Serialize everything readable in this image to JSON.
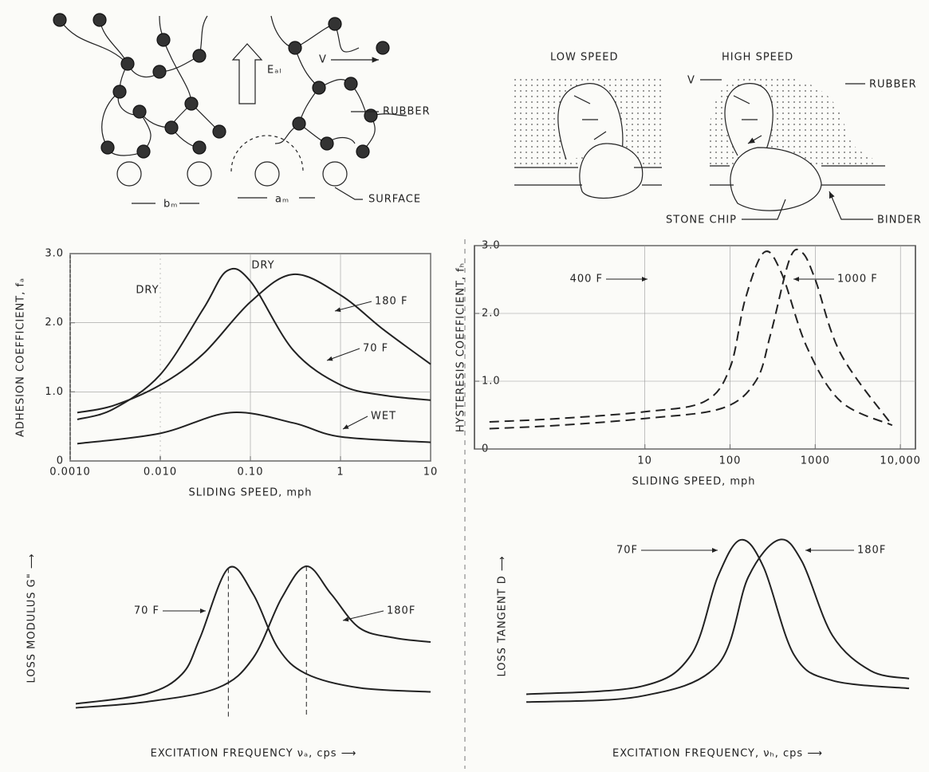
{
  "diagrams": {
    "molecular": {
      "labels": [
        "Eₐₗ",
        "V",
        "RUBBER",
        "bₘ",
        "aₘ",
        "SURFACE"
      ]
    },
    "stone": {
      "labels": [
        "LOW SPEED",
        "HIGH SPEED",
        "V",
        "RUBBER",
        "STONE CHIP",
        "BINDER"
      ]
    }
  },
  "chart_data": [
    {
      "type": "line",
      "x_label": "SLIDING SPEED, mph",
      "y_label": "ADHESION COEFFICIENT, fₐ",
      "xscale": "log",
      "xlim": [
        0.001,
        10
      ],
      "ylim": [
        0,
        3
      ],
      "xticks": [
        {
          "value": 0.001,
          "label": "0.0010"
        },
        {
          "value": 0.01,
          "label": "0.010"
        },
        {
          "value": 0.1,
          "label": "0.10"
        },
        1,
        10
      ],
      "yticks": [
        0,
        {
          "value": 1,
          "label": "1.0"
        },
        {
          "value": 2,
          "label": "2.0"
        },
        {
          "value": 3,
          "label": "3.0"
        }
      ],
      "grid": true,
      "frame": true,
      "annotations": [
        "DRY",
        "DRY"
      ],
      "series": [
        {
          "name": "70 F",
          "color": "#222",
          "x": [
            0.0012,
            0.003,
            0.01,
            0.03,
            0.055,
            0.1,
            0.3,
            1,
            3,
            10
          ],
          "values": [
            0.6,
            0.75,
            1.25,
            2.2,
            2.75,
            2.6,
            1.6,
            1.1,
            0.95,
            0.88
          ]
        },
        {
          "name": "180 F",
          "color": "#222",
          "x": [
            0.0012,
            0.003,
            0.01,
            0.03,
            0.1,
            0.3,
            1,
            3,
            10
          ],
          "values": [
            0.7,
            0.8,
            1.1,
            1.55,
            2.3,
            2.7,
            2.4,
            1.9,
            1.4
          ]
        },
        {
          "name": "WET",
          "color": "#222",
          "x": [
            0.0012,
            0.01,
            0.06,
            0.3,
            1,
            10
          ],
          "values": [
            0.25,
            0.4,
            0.7,
            0.55,
            0.35,
            0.27
          ]
        }
      ]
    },
    {
      "type": "line",
      "x_label": "SLIDING SPEED, mph",
      "y_label": "HYSTERESIS COEFFICIENT, fₕ",
      "xscale": "log",
      "xlim": [
        0.1,
        15000
      ],
      "ylim": [
        0,
        3
      ],
      "xticks": [
        10,
        100,
        1000,
        {
          "value": 10000,
          "label": "10,000"
        }
      ],
      "yticks": [
        0,
        {
          "value": 1,
          "label": "1.0"
        },
        {
          "value": 2,
          "label": "2.0"
        },
        {
          "value": 3,
          "label": "3.0"
        }
      ],
      "grid": true,
      "frame": true,
      "annotations": [],
      "series": [
        {
          "name": "400 F",
          "color": "#222",
          "dash": true,
          "x": [
            0.15,
            1,
            10,
            50,
            100,
            150,
            250,
            400,
            800,
            2000,
            8000
          ],
          "values": [
            0.4,
            0.45,
            0.55,
            0.7,
            1.2,
            2.2,
            2.9,
            2.6,
            1.5,
            0.7,
            0.35
          ]
        },
        {
          "name": "1000 F",
          "color": "#222",
          "dash": true,
          "x": [
            0.15,
            1,
            10,
            80,
            200,
            300,
            500,
            700,
            1000,
            2000,
            8000
          ],
          "values": [
            0.3,
            0.35,
            0.45,
            0.6,
            1.0,
            1.7,
            2.8,
            2.9,
            2.5,
            1.4,
            0.35
          ]
        }
      ]
    },
    {
      "type": "line",
      "x_label": "EXCITATION FREQUENCY νₐ, cps ⟶",
      "y_label": "LOSS MODULUS G\" ⟶",
      "xlim": [
        0,
        10
      ],
      "ylim": [
        0,
        1
      ],
      "grid": false,
      "frame": false,
      "peak_lines": true,
      "annotations": [],
      "series": [
        {
          "name": "70 F",
          "color": "#222",
          "x": [
            0,
            2,
            3,
            3.5,
            4.3,
            5,
            5.7,
            6.5,
            8,
            10
          ],
          "values": [
            0.07,
            0.12,
            0.22,
            0.4,
            0.75,
            0.62,
            0.35,
            0.22,
            0.15,
            0.13
          ]
        },
        {
          "name": "180F",
          "color": "#222",
          "x": [
            0,
            2,
            4,
            5,
            5.8,
            6.5,
            7.2,
            8,
            9,
            10
          ],
          "values": [
            0.05,
            0.08,
            0.15,
            0.3,
            0.6,
            0.76,
            0.62,
            0.45,
            0.4,
            0.38
          ]
        }
      ]
    },
    {
      "type": "line",
      "x_label": "EXCITATION FREQUENCY, νₕ, cps ⟶",
      "y_label": "LOSS TANGENT D ⟶",
      "xlim": [
        0,
        10
      ],
      "ylim": [
        0,
        1
      ],
      "grid": false,
      "frame": false,
      "annotations": [],
      "series": [
        {
          "name": "70F",
          "color": "#222",
          "x": [
            0,
            3,
            4.3,
            5,
            5.6,
            6.2,
            7,
            8,
            10
          ],
          "values": [
            0.1,
            0.14,
            0.3,
            0.7,
            0.89,
            0.75,
            0.3,
            0.17,
            0.13
          ]
        },
        {
          "name": "180F",
          "color": "#222",
          "x": [
            0,
            3,
            5,
            5.8,
            6.6,
            7.2,
            8,
            9,
            10
          ],
          "values": [
            0.06,
            0.09,
            0.25,
            0.7,
            0.89,
            0.78,
            0.4,
            0.22,
            0.18
          ]
        }
      ]
    }
  ]
}
